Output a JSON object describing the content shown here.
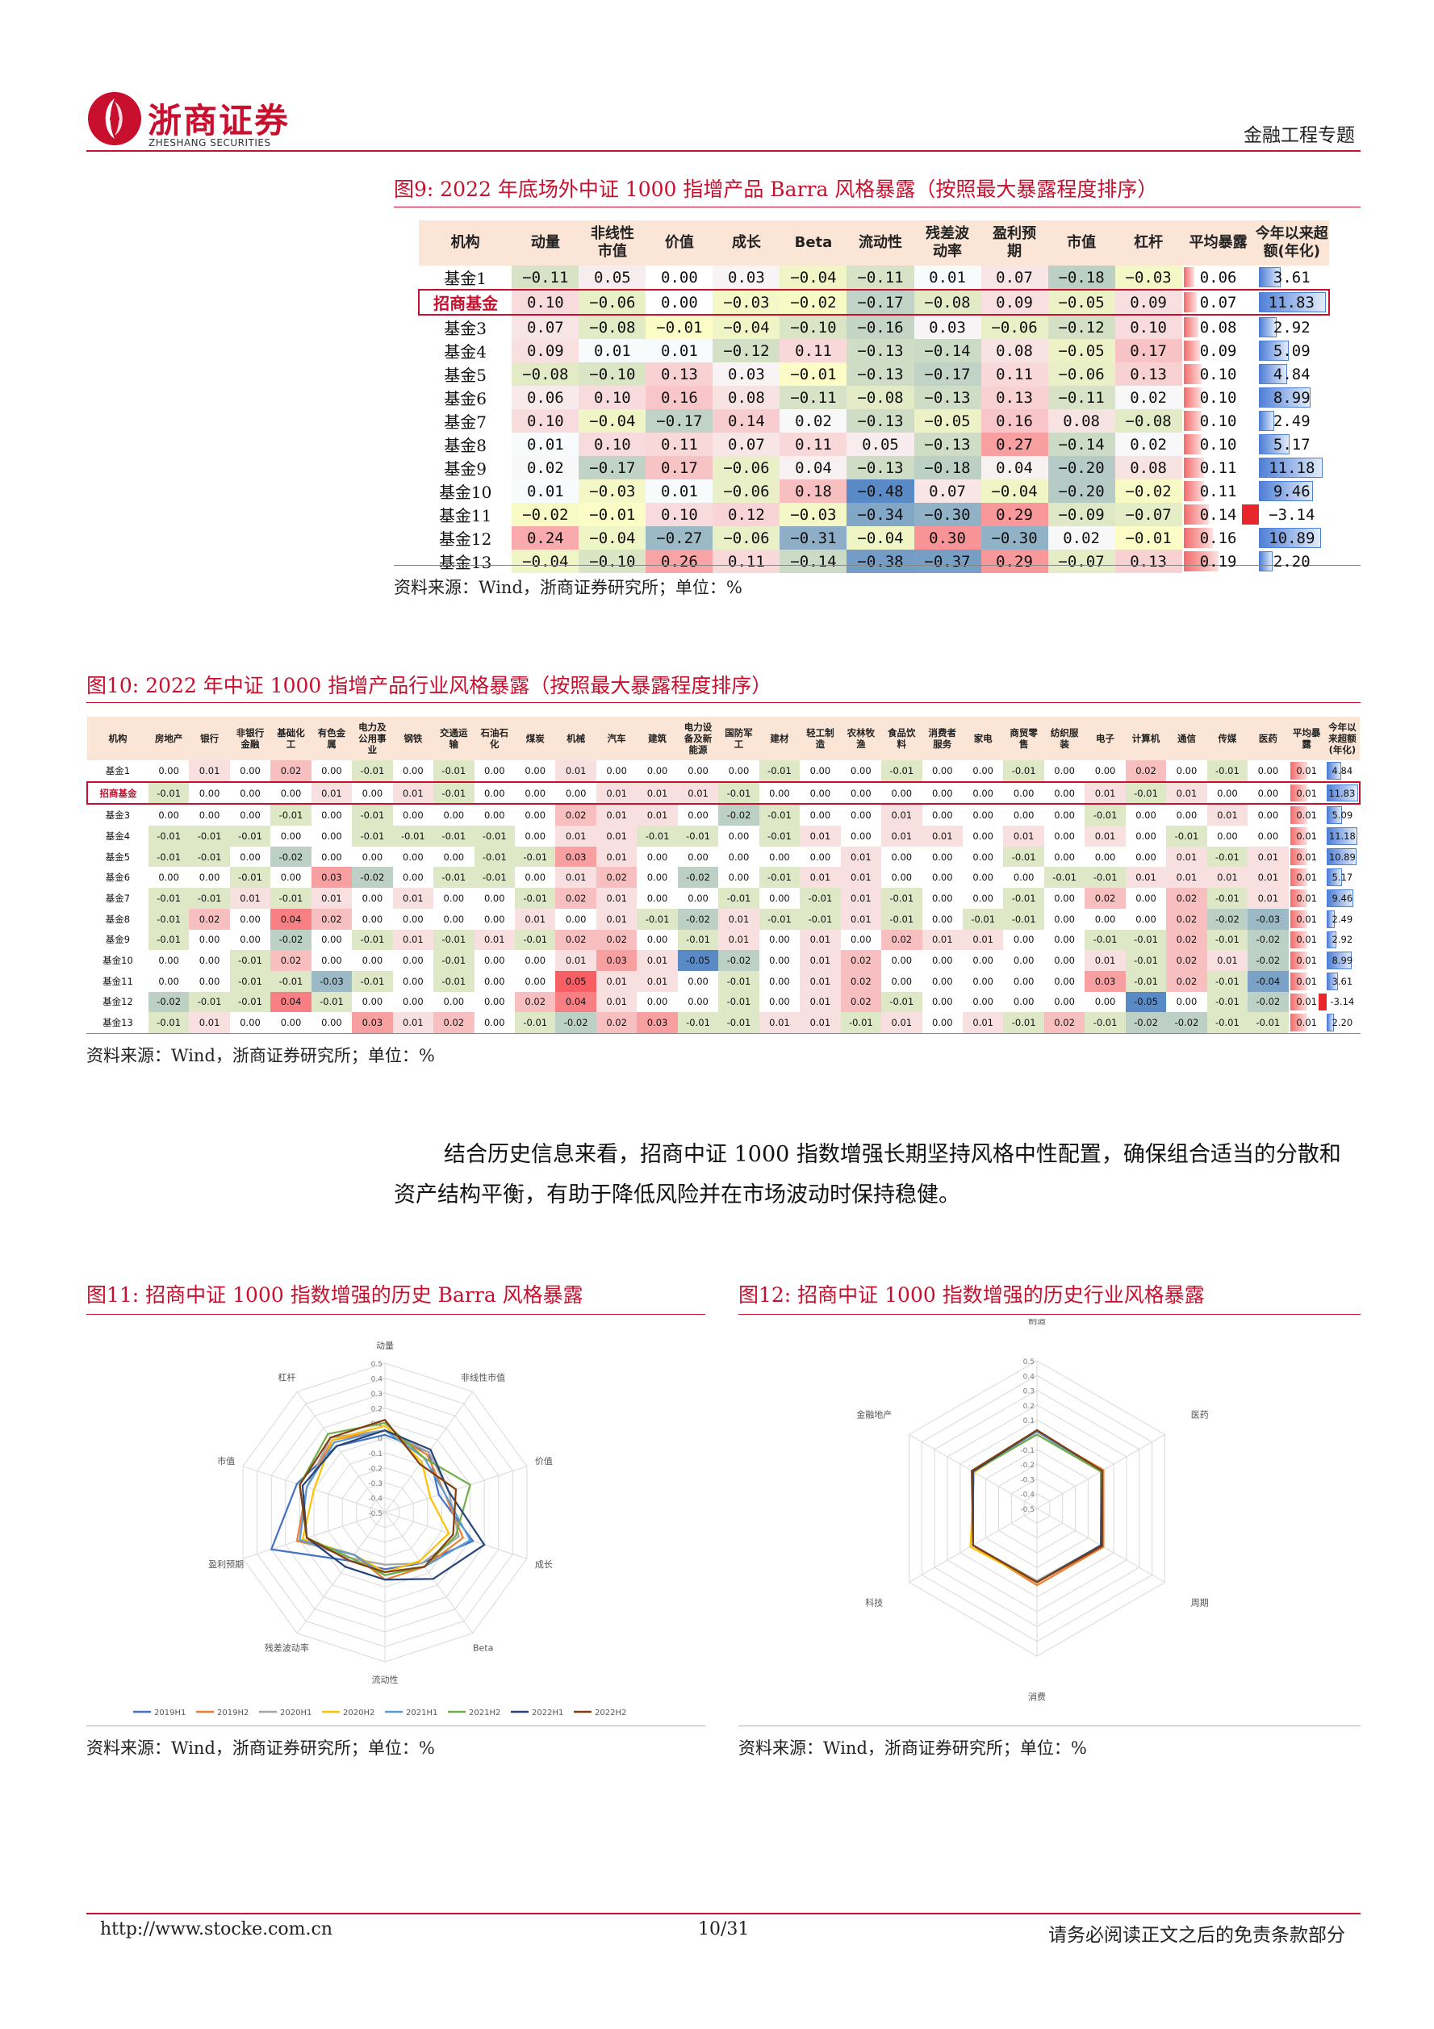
{
  "header": {
    "logo_cn": "浙商证券",
    "logo_en": "ZHESHANG SECURITIES",
    "doc_type": "金融工程专题"
  },
  "fig9": {
    "title": "图9:   2022 年底场外中证 1000 指增产品 Barra 风格暴露（按照最大暴露程度排序）",
    "columns": [
      "机构",
      "动量",
      "非线性\n市值",
      "价值",
      "成长",
      "Beta",
      "流动性",
      "残差波\n动率",
      "盈利预\n期",
      "市值",
      "杠杆",
      "平均暴露",
      "今年以来超\n额(年化)"
    ],
    "rows": [
      {
        "name": "基金1",
        "vals": [
          -0.11,
          0.05,
          0.0,
          0.03,
          -0.04,
          -0.11,
          0.01,
          0.07,
          -0.18,
          -0.03
        ],
        "avg": 0.06,
        "excess": 3.61,
        "hl": false
      },
      {
        "name": "招商基金",
        "vals": [
          0.1,
          -0.06,
          0.0,
          -0.03,
          -0.02,
          -0.17,
          -0.08,
          0.09,
          -0.05,
          0.09
        ],
        "avg": 0.07,
        "excess": 11.83,
        "hl": true
      },
      {
        "name": "基金3",
        "vals": [
          0.07,
          -0.08,
          -0.01,
          -0.04,
          -0.1,
          -0.16,
          0.03,
          -0.06,
          -0.12,
          0.1
        ],
        "avg": 0.08,
        "excess": 2.92,
        "hl": false
      },
      {
        "name": "基金4",
        "vals": [
          0.09,
          0.01,
          0.01,
          -0.12,
          0.11,
          -0.13,
          -0.14,
          0.08,
          -0.05,
          0.17
        ],
        "avg": 0.09,
        "excess": 5.09,
        "hl": false
      },
      {
        "name": "基金5",
        "vals": [
          -0.08,
          -0.1,
          0.13,
          0.03,
          -0.01,
          -0.13,
          -0.17,
          0.11,
          -0.06,
          0.13
        ],
        "avg": 0.1,
        "excess": 4.84,
        "hl": false
      },
      {
        "name": "基金6",
        "vals": [
          0.06,
          0.1,
          0.16,
          0.08,
          -0.11,
          -0.08,
          -0.13,
          0.13,
          -0.11,
          0.02
        ],
        "avg": 0.1,
        "excess": 8.99,
        "hl": false
      },
      {
        "name": "基金7",
        "vals": [
          0.1,
          -0.04,
          -0.17,
          0.14,
          0.02,
          -0.13,
          -0.05,
          0.16,
          0.08,
          -0.08
        ],
        "avg": 0.1,
        "excess": 2.49,
        "hl": false
      },
      {
        "name": "基金8",
        "vals": [
          0.01,
          0.1,
          0.11,
          0.07,
          0.11,
          0.05,
          -0.13,
          0.27,
          -0.14,
          0.02
        ],
        "avg": 0.1,
        "excess": 5.17,
        "hl": false
      },
      {
        "name": "基金9",
        "vals": [
          0.02,
          -0.17,
          0.17,
          -0.06,
          0.04,
          -0.13,
          -0.18,
          0.04,
          -0.2,
          0.08
        ],
        "avg": 0.11,
        "excess": 11.18,
        "hl": false
      },
      {
        "name": "基金10",
        "vals": [
          0.01,
          -0.03,
          0.01,
          -0.06,
          0.18,
          -0.48,
          0.07,
          -0.04,
          -0.2,
          -0.02
        ],
        "avg": 0.11,
        "excess": 9.46,
        "hl": false
      },
      {
        "name": "基金11",
        "vals": [
          -0.02,
          -0.01,
          0.1,
          0.12,
          -0.03,
          -0.34,
          -0.3,
          0.29,
          -0.09,
          -0.07
        ],
        "avg": 0.14,
        "excess": -3.14,
        "hl": false
      },
      {
        "name": "基金12",
        "vals": [
          0.24,
          -0.04,
          -0.27,
          -0.06,
          -0.31,
          -0.04,
          0.3,
          -0.3,
          0.02,
          -0.01
        ],
        "avg": 0.16,
        "excess": 10.89,
        "hl": false
      },
      {
        "name": "基金13",
        "vals": [
          -0.04,
          -0.1,
          0.26,
          0.11,
          -0.14,
          -0.38,
          -0.37,
          0.29,
          -0.07,
          0.13
        ],
        "avg": 0.19,
        "excess": 2.2,
        "hl": false
      }
    ],
    "source": "资料来源：Wind，浙商证券研究所；单位：%"
  },
  "fig10": {
    "title": "图10:   2022 年中证 1000 指增产品行业风格暴露（按照最大暴露程度排序）",
    "columns": [
      "机构",
      "房地产",
      "银行",
      "非银行\n金融",
      "基础化\n工",
      "有色金\n属",
      "电力及\n公用事\n业",
      "钢铁",
      "交通运\n输",
      "石油石\n化",
      "煤炭",
      "机械",
      "汽车",
      "建筑",
      "电力设\n备及新\n能源",
      "国防军\n工",
      "建材",
      "轻工制\n造",
      "农林牧\n渔",
      "食品饮\n料",
      "消费者\n服务",
      "家电",
      "商贸零\n售",
      "纺织服\n装",
      "电子",
      "计算机",
      "通信",
      "传媒",
      "医药",
      "平均暴\n露",
      "今年以\n来超额\n(年化)"
    ],
    "rows": [
      {
        "name": "基金1",
        "vals": [
          0.0,
          0.01,
          0.0,
          0.02,
          0.0,
          -0.01,
          0.0,
          -0.01,
          0.0,
          0.0,
          0.01,
          0.0,
          0.0,
          0.0,
          0.0,
          -0.01,
          0.0,
          0.0,
          -0.01,
          0.0,
          0.0,
          -0.01,
          0.0,
          0.0,
          0.02,
          0.0,
          -0.01,
          0.0
        ],
        "avg": 0.01,
        "excess": 4.84,
        "hl": false
      },
      {
        "name": "招商基金",
        "vals": [
          -0.01,
          0.0,
          0.0,
          0.0,
          0.01,
          0.0,
          0.01,
          -0.01,
          0.0,
          0.0,
          0.0,
          0.01,
          0.01,
          0.01,
          -0.01,
          0.0,
          0.0,
          0.0,
          0.0,
          0.0,
          0.0,
          0.0,
          0.0,
          0.01,
          -0.01,
          0.01,
          0.0,
          0.0
        ],
        "avg": 0.01,
        "excess": 11.83,
        "hl": true
      },
      {
        "name": "基金3",
        "vals": [
          0.0,
          0.0,
          0.0,
          -0.01,
          0.0,
          -0.01,
          0.0,
          0.0,
          0.0,
          0.0,
          0.02,
          0.01,
          0.01,
          0.0,
          -0.02,
          -0.01,
          0.0,
          0.0,
          0.01,
          0.0,
          0.0,
          0.0,
          0.0,
          -0.01,
          0.0,
          0.0,
          0.01,
          0.0
        ],
        "avg": 0.01,
        "excess": 5.09,
        "hl": false
      },
      {
        "name": "基金4",
        "vals": [
          -0.01,
          -0.01,
          -0.01,
          0.0,
          0.0,
          -0.01,
          -0.01,
          -0.01,
          -0.01,
          0.0,
          0.01,
          0.01,
          -0.01,
          -0.01,
          0.0,
          -0.01,
          0.01,
          0.0,
          0.01,
          0.01,
          0.0,
          0.01,
          0.0,
          0.01,
          0.0,
          -0.01,
          0.0,
          0.0
        ],
        "avg": 0.01,
        "excess": 11.18,
        "hl": false
      },
      {
        "name": "基金5",
        "vals": [
          -0.01,
          -0.01,
          0.0,
          -0.02,
          0.0,
          0.0,
          0.0,
          0.0,
          -0.01,
          -0.01,
          0.03,
          0.01,
          0.0,
          0.0,
          0.0,
          0.0,
          0.0,
          0.01,
          0.0,
          0.0,
          0.0,
          -0.01,
          0.0,
          0.0,
          0.0,
          0.01,
          -0.01,
          0.01
        ],
        "avg": 0.01,
        "excess": 10.89,
        "hl": false
      },
      {
        "name": "基金6",
        "vals": [
          0.0,
          0.0,
          -0.01,
          0.0,
          0.03,
          -0.02,
          0.0,
          -0.01,
          -0.01,
          0.0,
          0.01,
          0.02,
          0.0,
          -0.02,
          0.0,
          -0.01,
          0.01,
          0.01,
          0.0,
          0.0,
          0.0,
          0.0,
          -0.01,
          -0.01,
          0.01,
          0.01,
          0.01,
          0.01
        ],
        "avg": 0.01,
        "excess": 5.17,
        "hl": false
      },
      {
        "name": "基金7",
        "vals": [
          -0.01,
          -0.01,
          0.01,
          -0.01,
          0.01,
          0.0,
          0.01,
          0.0,
          0.0,
          -0.01,
          0.02,
          0.01,
          0.0,
          0.0,
          -0.01,
          0.0,
          -0.01,
          0.01,
          -0.01,
          0.0,
          0.0,
          -0.01,
          0.0,
          0.02,
          0.0,
          0.02,
          -0.01,
          0.01
        ],
        "avg": 0.01,
        "excess": 9.46,
        "hl": false
      },
      {
        "name": "基金8",
        "vals": [
          -0.01,
          0.02,
          0.0,
          0.04,
          0.02,
          0.0,
          0.0,
          0.0,
          0.0,
          0.01,
          0.0,
          0.01,
          -0.01,
          -0.02,
          0.01,
          -0.01,
          -0.01,
          0.01,
          -0.01,
          0.0,
          -0.01,
          -0.01,
          0.0,
          0.0,
          0.0,
          0.02,
          -0.02,
          -0.03
        ],
        "avg": 0.01,
        "excess": 2.49,
        "hl": false
      },
      {
        "name": "基金9",
        "vals": [
          -0.01,
          0.0,
          0.0,
          -0.02,
          0.0,
          -0.01,
          0.01,
          -0.01,
          0.01,
          -0.01,
          0.02,
          0.02,
          0.0,
          -0.01,
          0.01,
          0.0,
          0.01,
          0.0,
          0.02,
          0.01,
          0.01,
          0.0,
          0.0,
          -0.01,
          -0.01,
          0.02,
          -0.01,
          -0.02
        ],
        "avg": 0.01,
        "excess": 2.92,
        "hl": false
      },
      {
        "name": "基金10",
        "vals": [
          0.0,
          0.0,
          -0.01,
          0.02,
          0.0,
          0.0,
          0.0,
          -0.01,
          0.0,
          0.0,
          0.01,
          0.03,
          0.01,
          -0.05,
          -0.02,
          0.0,
          0.01,
          0.02,
          0.0,
          0.0,
          0.0,
          0.0,
          0.0,
          0.01,
          -0.01,
          0.02,
          0.01,
          -0.02
        ],
        "avg": 0.01,
        "excess": 8.99,
        "hl": false
      },
      {
        "name": "基金11",
        "vals": [
          0.0,
          0.0,
          -0.01,
          -0.01,
          -0.03,
          -0.01,
          0.0,
          -0.01,
          0.0,
          0.0,
          0.05,
          0.01,
          0.01,
          0.0,
          -0.01,
          0.0,
          0.01,
          0.02,
          0.0,
          0.0,
          0.0,
          0.0,
          0.0,
          0.03,
          -0.01,
          0.02,
          -0.01,
          -0.04
        ],
        "avg": 0.01,
        "excess": 3.61,
        "hl": false
      },
      {
        "name": "基金12",
        "vals": [
          -0.02,
          -0.01,
          -0.01,
          0.04,
          -0.01,
          0.0,
          0.0,
          0.0,
          0.0,
          0.02,
          0.04,
          0.01,
          0.0,
          0.0,
          -0.01,
          0.0,
          0.01,
          0.02,
          -0.01,
          0.0,
          0.0,
          0.0,
          0.0,
          0.0,
          -0.05,
          0.0,
          -0.01,
          -0.02
        ],
        "avg": 0.01,
        "excess": -3.14,
        "hl": false
      },
      {
        "name": "基金13",
        "vals": [
          -0.01,
          0.01,
          0.0,
          0.0,
          0.0,
          0.03,
          0.01,
          0.02,
          0.0,
          -0.01,
          -0.02,
          0.02,
          0.03,
          -0.01,
          -0.01,
          0.01,
          0.01,
          -0.01,
          0.01,
          0.0,
          0.01,
          -0.01,
          0.02,
          -0.01,
          -0.02,
          -0.02,
          -0.01,
          -0.01
        ],
        "avg": 0.01,
        "excess": 2.2,
        "hl": false
      }
    ],
    "source": "资料来源：Wind，浙商证券研究所；单位：%"
  },
  "body": {
    "paragraph": "结合历史信息来看，招商中证 1000 指数增强长期坚持风格中性配置，确保组合适当的分散和资产结构平衡，有助于降低风险并在市场波动时保持稳健。"
  },
  "fig11": {
    "title": "图11:   招商中证 1000 指数增强的历史 Barra 风格暴露",
    "source": "资料来源：Wind，浙商证券研究所；单位：%"
  },
  "fig12": {
    "title": "图12:   招商中证 1000 指数增强的历史行业风格暴露",
    "source": "资料来源：Wind，浙商证券研究所；单位：%"
  },
  "chart_data": [
    {
      "type": "radar",
      "axes": [
        "动量",
        "非线性市值",
        "价值",
        "成长",
        "Beta",
        "流动性",
        "残差波动率",
        "盈利预期",
        "市值",
        "杠杆"
      ],
      "ticks": [
        "0.5",
        "0.4",
        "0.3",
        "0.2",
        "0.1",
        "0",
        "-0.1",
        "-0.2",
        "-0.3",
        "-0.4",
        "-0.5"
      ],
      "range": [
        -0.5,
        0.5
      ],
      "series": [
        {
          "name": "2019H1",
          "color": "#4472c4",
          "values": [
            0.02,
            0.0,
            -0.12,
            0.12,
            -0.08,
            -0.12,
            -0.1,
            0.3,
            0.12,
            0.05
          ]
        },
        {
          "name": "2019H2",
          "color": "#ed7d31",
          "values": [
            0.05,
            -0.02,
            -0.08,
            0.05,
            -0.05,
            -0.05,
            -0.15,
            0.12,
            0.05,
            0.1
          ]
        },
        {
          "name": "2020H1",
          "color": "#a5a5a5",
          "values": [
            0.05,
            0.0,
            -0.05,
            0.02,
            -0.08,
            -0.15,
            -0.12,
            0.1,
            0.05,
            0.12
          ]
        },
        {
          "name": "2020H2",
          "color": "#ffc000",
          "values": [
            0.08,
            -0.08,
            -0.18,
            -0.05,
            -0.1,
            -0.1,
            -0.15,
            0.08,
            0.0,
            0.1
          ]
        },
        {
          "name": "2021H1",
          "color": "#5b9bd5",
          "values": [
            0.05,
            -0.05,
            -0.08,
            0.1,
            -0.05,
            -0.08,
            -0.15,
            0.1,
            0.05,
            0.08
          ]
        },
        {
          "name": "2021H2",
          "color": "#70ad47",
          "values": [
            0.1,
            -0.05,
            0.1,
            0.0,
            -0.05,
            -0.08,
            -0.12,
            0.05,
            0.1,
            0.15
          ]
        },
        {
          "name": "2022H1",
          "color": "#264478",
          "values": [
            0.05,
            0.02,
            -0.05,
            0.2,
            0.05,
            -0.05,
            -0.05,
            0.05,
            0.08,
            0.05
          ]
        },
        {
          "name": "2022H2",
          "color": "#843c0c",
          "values": [
            0.12,
            -0.1,
            0.0,
            -0.02,
            -0.05,
            -0.1,
            -0.1,
            0.05,
            0.1,
            0.12
          ]
        }
      ]
    },
    {
      "type": "radar",
      "axes": [
        "制造",
        "医药",
        "周期",
        "消费",
        "科技",
        "金融地产"
      ],
      "ticks": [
        "0.5",
        "0.4",
        "0.3",
        "0.2",
        "0.1",
        "0",
        "-0.1",
        "-0.2",
        "-0.3",
        "-0.4",
        "-0.5"
      ],
      "range": [
        -0.5,
        0.5
      ],
      "series": [
        {
          "name": "2019H1",
          "color": "#4472c4",
          "values": [
            0.03,
            0.0,
            0.0,
            0.0,
            0.0,
            0.0
          ]
        },
        {
          "name": "2019H2",
          "color": "#ed7d31",
          "values": [
            0.02,
            0.02,
            0.02,
            0.02,
            0.0,
            0.0
          ]
        },
        {
          "name": "2020H1",
          "color": "#a5a5a5",
          "values": [
            0.02,
            0.0,
            0.0,
            -0.01,
            0.0,
            0.0
          ]
        },
        {
          "name": "2020H2",
          "color": "#ffc000",
          "values": [
            0.03,
            0.0,
            0.0,
            0.0,
            0.02,
            -0.01
          ]
        },
        {
          "name": "2021H1",
          "color": "#5b9bd5",
          "values": [
            0.02,
            0.0,
            0.0,
            0.0,
            0.0,
            0.0
          ]
        },
        {
          "name": "2021H2",
          "color": "#70ad47",
          "values": [
            0.0,
            0.0,
            0.0,
            0.0,
            0.0,
            0.0
          ]
        },
        {
          "name": "2022H1",
          "color": "#264478",
          "values": [
            0.03,
            0.01,
            0.0,
            0.0,
            0.0,
            0.0
          ]
        },
        {
          "name": "2022H2",
          "color": "#843c0c",
          "values": [
            0.03,
            0.01,
            0.01,
            0.0,
            0.0,
            0.01
          ]
        }
      ]
    }
  ],
  "footer": {
    "url": "http://www.stocke.com.cn",
    "page": "10/31",
    "disclaimer": "请务必阅读正文之后的免责条款部分"
  }
}
